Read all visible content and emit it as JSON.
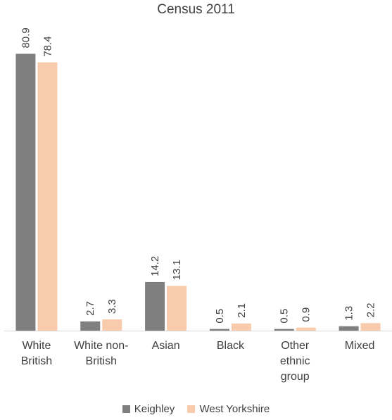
{
  "chart_data": {
    "type": "bar",
    "title": "Census 2011",
    "xlabel": "",
    "ylabel": "",
    "ylim": [
      0,
      81
    ],
    "grid": false,
    "legend_position": "bottom",
    "categories": [
      [
        "White",
        "British"
      ],
      [
        "White non-",
        "British"
      ],
      [
        "Asian"
      ],
      [
        "Black"
      ],
      [
        "Other",
        "ethnic",
        "group"
      ],
      [
        "Mixed"
      ]
    ],
    "series": [
      {
        "name": "Keighley",
        "color": "#7f7f7f",
        "values": [
          80.9,
          2.7,
          14.2,
          0.5,
          0.5,
          1.3
        ],
        "labels": [
          "80.9",
          "2.7",
          "14.2",
          "0.5",
          "0.5",
          "1.3"
        ]
      },
      {
        "name": "West Yorkshire",
        "color": "#f8cbad",
        "values": [
          78.4,
          3.3,
          13.1,
          2.1,
          0.9,
          2.2
        ],
        "labels": [
          "78.4",
          "3.3",
          "13.1",
          "2.1",
          "0.9",
          "2.2"
        ]
      }
    ]
  }
}
